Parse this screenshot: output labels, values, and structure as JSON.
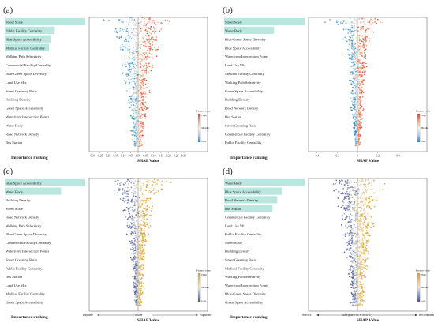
{
  "figure": {
    "xlabel": "SHAP Value",
    "rank_label": "Importance ranking",
    "colors": {
      "rank_box": "#b9e6de",
      "low": "#3b8bc2",
      "high": "#ef6a4e",
      "middle": "#f1ead6",
      "zero_line": "#666666"
    }
  },
  "chart_data": [
    {
      "panel": "(a)",
      "type": "scatter",
      "xlim": [
        -0.3,
        0.3
      ],
      "ticks": [
        "-0.30",
        "-0.25",
        "-0.20",
        "-0.15",
        "-0.10",
        "-0.05",
        "0.00",
        "0.05",
        "0.10",
        "0.15",
        "0.20",
        "0.25",
        "0.30"
      ],
      "tick_values": [
        -0.3,
        -0.25,
        -0.2,
        -0.15,
        -0.1,
        -0.05,
        0,
        0.05,
        0.1,
        0.15,
        0.2,
        0.25,
        0.3
      ],
      "features": [
        {
          "name": "Street Scale",
          "importance": 1.0,
          "spread": 0.26
        },
        {
          "name": "Public Facility Centrality",
          "importance": 0.62,
          "spread": 0.24
        },
        {
          "name": "Blue Space Accessibility",
          "importance": 0.57,
          "spread": 0.22
        },
        {
          "name": "Medical Facility Centrality",
          "importance": 0.55,
          "spread": 0.2
        },
        {
          "name": "Walking Path Selectivity",
          "importance": 0.0,
          "spread": 0.17
        },
        {
          "name": "Commercial Facility Centrality",
          "importance": 0.0,
          "spread": 0.15
        },
        {
          "name": "Blue-Green Space Diversity",
          "importance": 0.0,
          "spread": 0.14
        },
        {
          "name": "Land Use Mix",
          "importance": 0.0,
          "spread": 0.12
        },
        {
          "name": "Street Greening Ratio",
          "importance": 0.0,
          "spread": 0.11
        },
        {
          "name": "Building Density",
          "importance": 0.0,
          "spread": 0.1
        },
        {
          "name": "Green Space Accessibility",
          "importance": 0.0,
          "spread": 0.09
        },
        {
          "name": "Waterfront Intersection Points",
          "importance": 0.0,
          "spread": 0.08
        },
        {
          "name": "Water Body",
          "importance": 0.0,
          "spread": 0.07
        },
        {
          "name": "Road Network Density",
          "importance": 0.0,
          "spread": 0.06
        },
        {
          "name": "Bus Station",
          "importance": 0.0,
          "spread": 0.05
        }
      ],
      "legend": {
        "title": "Feature value",
        "high": "High",
        "middle": "Middle",
        "low": "Low",
        "palette": "redblue"
      },
      "bottom_left": "",
      "bottom_middle": "",
      "bottom_right": ""
    },
    {
      "panel": "(b)",
      "type": "scatter",
      "xlim": [
        -0.45,
        0.45
      ],
      "ticks": [
        "-0.4",
        "-0.2",
        "0",
        "0.2",
        "0.4"
      ],
      "tick_values": [
        -0.4,
        -0.2,
        0,
        0.2,
        0.4
      ],
      "features": [
        {
          "name": "Street Scale",
          "importance": 1.0,
          "spread": 0.42
        },
        {
          "name": "Water Body",
          "importance": 0.62,
          "spread": 0.22
        },
        {
          "name": "Blue-Green Space Diversity",
          "importance": 0.0,
          "spread": 0.18
        },
        {
          "name": "Blue Space Accessibility",
          "importance": 0.0,
          "spread": 0.16
        },
        {
          "name": "Waterfront Intersection Points",
          "importance": 0.0,
          "spread": 0.15
        },
        {
          "name": "Land Use Mix",
          "importance": 0.0,
          "spread": 0.13
        },
        {
          "name": "Medical Facility Centrality",
          "importance": 0.0,
          "spread": 0.12
        },
        {
          "name": "Walking Path Selectivity",
          "importance": 0.0,
          "spread": 0.11
        },
        {
          "name": "Green Space Accessibility",
          "importance": 0.0,
          "spread": 0.1
        },
        {
          "name": "Building Density",
          "importance": 0.0,
          "spread": 0.09
        },
        {
          "name": "Road Network Density",
          "importance": 0.0,
          "spread": 0.08
        },
        {
          "name": "Bus Station",
          "importance": 0.0,
          "spread": 0.07
        },
        {
          "name": "Street Greening Ratio",
          "importance": 0.0,
          "spread": 0.06
        },
        {
          "name": "Commercial Facility Centrality",
          "importance": 0.0,
          "spread": 0.05
        },
        {
          "name": "Public Facility Centrality",
          "importance": 0.0,
          "spread": 0.04
        }
      ],
      "legend": {
        "title": "Feature value",
        "high": "High",
        "middle": "Middle",
        "low": "Low",
        "palette": "redblue"
      },
      "bottom_left": "",
      "bottom_middle": "",
      "bottom_right": ""
    },
    {
      "panel": "(c)",
      "type": "scatter",
      "xlim": [
        -0.3,
        0.3
      ],
      "ticks": [],
      "tick_values": [],
      "features": [
        {
          "name": "Blue Space Accessibility",
          "importance": 1.0,
          "spread": 0.26
        },
        {
          "name": "Water Body",
          "importance": 0.7,
          "spread": 0.24
        },
        {
          "name": "Building Density",
          "importance": 0.0,
          "spread": 0.16
        },
        {
          "name": "Street Scale",
          "importance": 0.0,
          "spread": 0.15
        },
        {
          "name": "Road Network Density",
          "importance": 0.0,
          "spread": 0.12
        },
        {
          "name": "Walking Path Selectivity",
          "importance": 0.0,
          "spread": 0.1
        },
        {
          "name": "Blue-Green Space Diversity",
          "importance": 0.0,
          "spread": 0.09
        },
        {
          "name": "Commercial Facility Centrality",
          "importance": 0.0,
          "spread": 0.08
        },
        {
          "name": "Waterfront Intersection Points",
          "importance": 0.0,
          "spread": 0.07
        },
        {
          "name": "Street Greening Ratio",
          "importance": 0.0,
          "spread": 0.07
        },
        {
          "name": "Public Facility Centrality",
          "importance": 0.0,
          "spread": 0.06
        },
        {
          "name": "Bus Station",
          "importance": 0.0,
          "spread": 0.05
        },
        {
          "name": "Land Use Mix",
          "importance": 0.0,
          "spread": 0.05
        },
        {
          "name": "Medical Facility Centrality",
          "importance": 0.0,
          "spread": 0.04
        },
        {
          "name": "Green Space Accessibility",
          "importance": 0.0,
          "spread": 0.04
        }
      ],
      "legend": {
        "title": "Feature value",
        "high": "High",
        "middle": "Middle",
        "low": "Low",
        "palette": "purpleyellow"
      },
      "bottom_left": "Daytime",
      "bottom_middle": "Neither",
      "bottom_right": "Nighttime"
    },
    {
      "panel": "(d)",
      "type": "scatter",
      "xlim": [
        -0.3,
        0.3
      ],
      "ticks": [],
      "tick_values": [],
      "features": [
        {
          "name": "Water Body",
          "importance": 1.0,
          "spread": 0.24
        },
        {
          "name": "Blue Space Accessibility",
          "importance": 0.72,
          "spread": 0.22
        },
        {
          "name": "Road Network Density",
          "importance": 0.66,
          "spread": 0.2
        },
        {
          "name": "Bus Station",
          "importance": 0.6,
          "spread": 0.18
        },
        {
          "name": "Commercial Facility Centrality",
          "importance": 0.0,
          "spread": 0.16
        },
        {
          "name": "Land Use Mix",
          "importance": 0.0,
          "spread": 0.15
        },
        {
          "name": "Public Facility Centrality",
          "importance": 0.0,
          "spread": 0.14
        },
        {
          "name": "Street Scale",
          "importance": 0.0,
          "spread": 0.13
        },
        {
          "name": "Building Density",
          "importance": 0.0,
          "spread": 0.12
        },
        {
          "name": "Street Greening Ratio",
          "importance": 0.0,
          "spread": 0.11
        },
        {
          "name": "Medical Facility Centrality",
          "importance": 0.0,
          "spread": 0.1
        },
        {
          "name": "Walking Path Selectivity",
          "importance": 0.0,
          "spread": 0.09
        },
        {
          "name": "Waterfront Intersection Points",
          "importance": 0.0,
          "spread": 0.08
        },
        {
          "name": "Blue-Green Space Diversity",
          "importance": 0.0,
          "spread": 0.07
        },
        {
          "name": "Green Space Accessibility",
          "importance": 0.0,
          "spread": 0.06
        }
      ],
      "legend": {
        "title": "Feature value",
        "high": "High",
        "middle": "Middle",
        "low": "Low",
        "palette": "purpleyellow"
      },
      "bottom_left": "Service",
      "bottom_middle": "Non-preference tendency",
      "bottom_right": "Recreational"
    }
  ]
}
